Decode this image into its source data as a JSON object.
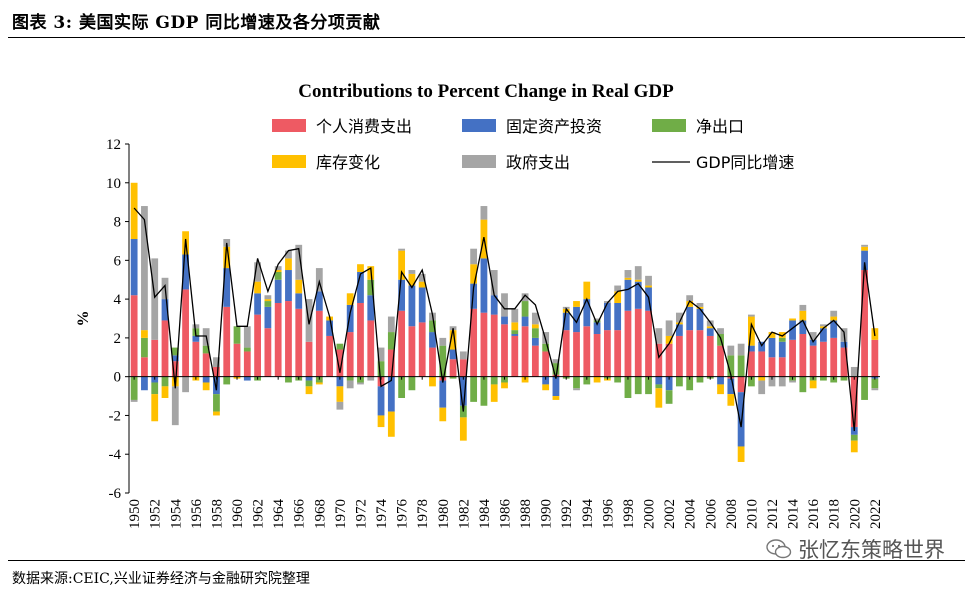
{
  "header": {
    "title": "图表 3:  美国实际 GDP 同比增速及各分项贡献"
  },
  "footer": {
    "source": "数据来源:CEIC,兴业证券经济与金融研究院整理"
  },
  "watermark": {
    "text": "张忆东策略世界",
    "icon": "wechat-icon"
  },
  "chart_data": {
    "type": "bar",
    "stacked": true,
    "title": "Contributions to Percent Change in Real GDP",
    "ylabel": "%",
    "xlabel": "",
    "ylim": [
      -6,
      12
    ],
    "yticks": [
      -6,
      -4,
      -2,
      0,
      2,
      4,
      6,
      8,
      10,
      12
    ],
    "grid": false,
    "legend_position": "top",
    "x_tick_labels": [
      "1950",
      "1952",
      "1954",
      "1956",
      "1958",
      "1960",
      "1962",
      "1964",
      "1966",
      "1968",
      "1970",
      "1972",
      "1974",
      "1976",
      "1978",
      "1980",
      "1982",
      "1984",
      "1986",
      "1988",
      "1990",
      "1992",
      "1994",
      "1996",
      "1998",
      "2000",
      "2002",
      "2004",
      "2006",
      "2008",
      "2010",
      "2012",
      "2014",
      "2016",
      "2018",
      "2020",
      "2022"
    ],
    "years": [
      1950,
      1951,
      1952,
      1953,
      1954,
      1955,
      1956,
      1957,
      1958,
      1959,
      1960,
      1961,
      1962,
      1963,
      1964,
      1965,
      1966,
      1967,
      1968,
      1969,
      1970,
      1971,
      1972,
      1973,
      1974,
      1975,
      1976,
      1977,
      1978,
      1979,
      1980,
      1981,
      1982,
      1983,
      1984,
      1985,
      1986,
      1987,
      1988,
      1989,
      1990,
      1991,
      1992,
      1993,
      1994,
      1995,
      1996,
      1997,
      1998,
      1999,
      2000,
      2001,
      2002,
      2003,
      2004,
      2005,
      2006,
      2007,
      2008,
      2009,
      2010,
      2011,
      2012,
      2013,
      2014,
      2015,
      2016,
      2017,
      2018,
      2019,
      2020,
      2021,
      2022
    ],
    "series": [
      {
        "name": "个人消费支出",
        "color": "#ee5a63",
        "values": [
          4.2,
          1.0,
          1.9,
          2.9,
          0.8,
          4.5,
          1.8,
          1.2,
          0.5,
          3.6,
          1.7,
          1.3,
          3.2,
          2.5,
          3.8,
          3.9,
          3.5,
          1.8,
          3.4,
          2.1,
          1.4,
          2.3,
          3.8,
          2.9,
          -0.5,
          1.4,
          3.4,
          2.6,
          2.8,
          1.5,
          -0.2,
          0.9,
          0.9,
          3.5,
          3.3,
          3.2,
          2.7,
          2.1,
          2.6,
          1.6,
          1.3,
          0.1,
          2.4,
          2.3,
          2.6,
          2.2,
          2.4,
          2.4,
          3.4,
          3.5,
          3.4,
          1.7,
          1.7,
          2.1,
          2.4,
          2.4,
          2.1,
          1.6,
          -0.1,
          -0.8,
          1.3,
          1.3,
          1.0,
          1.0,
          1.9,
          2.2,
          1.6,
          1.8,
          2.0,
          1.5,
          -2.6,
          5.5,
          1.9
        ]
      },
      {
        "name": "固定资产投资",
        "color": "#4471c4",
        "values": [
          2.9,
          -0.7,
          -0.3,
          1.1,
          0.3,
          1.8,
          0.3,
          -0.3,
          -0.9,
          2.0,
          0.0,
          -0.2,
          1.1,
          1.1,
          1.2,
          1.6,
          0.8,
          -0.2,
          1.0,
          0.8,
          -0.5,
          1.4,
          1.6,
          1.3,
          -1.5,
          -1.8,
          1.6,
          2.1,
          1.8,
          0.8,
          -1.4,
          0.5,
          -1.5,
          1.3,
          2.8,
          1.0,
          0.4,
          0.1,
          0.5,
          0.4,
          -0.4,
          -1.0,
          0.9,
          1.3,
          1.4,
          0.6,
          1.4,
          1.4,
          1.6,
          1.4,
          1.2,
          -0.4,
          -0.7,
          0.6,
          1.2,
          1.1,
          0.4,
          -0.4,
          -0.8,
          -2.8,
          0.3,
          0.5,
          1.0,
          0.8,
          1.0,
          0.7,
          0.3,
          0.7,
          0.9,
          0.3,
          -0.4,
          1.0,
          -0.1
        ]
      },
      {
        "name": "净出口",
        "color": "#70ad47",
        "values": [
          -1.2,
          1.0,
          -0.6,
          -0.5,
          0.4,
          0.0,
          0.4,
          0.4,
          -0.9,
          -0.4,
          0.9,
          0.2,
          -0.2,
          0.3,
          0.4,
          -0.3,
          -0.2,
          -0.3,
          -0.3,
          0.0,
          0.3,
          -0.2,
          -0.3,
          0.8,
          0.8,
          0.9,
          -1.1,
          -0.7,
          0.0,
          0.6,
          1.6,
          -0.1,
          -0.6,
          -1.3,
          -1.5,
          -0.4,
          -0.3,
          0.2,
          0.8,
          0.5,
          0.4,
          0.6,
          -0.1,
          -0.6,
          -0.4,
          0.1,
          -0.1,
          -0.3,
          -1.1,
          -0.9,
          -0.9,
          -0.2,
          -0.7,
          -0.5,
          -0.7,
          -0.3,
          -0.1,
          0.6,
          1.1,
          1.1,
          -0.5,
          0.0,
          0.0,
          0.2,
          -0.2,
          -0.8,
          -0.2,
          -0.2,
          -0.3,
          -0.2,
          -0.3,
          -1.2,
          -0.5
        ]
      },
      {
        "name": "库存变化",
        "color": "#ffc000",
        "values": [
          2.9,
          0.4,
          -1.4,
          -0.6,
          -0.5,
          1.2,
          -0.2,
          -0.4,
          -0.2,
          1.1,
          -0.1,
          0.0,
          0.6,
          0.1,
          0.1,
          0.6,
          0.7,
          -0.4,
          -0.1,
          0.2,
          -0.8,
          0.6,
          0.4,
          0.7,
          -0.6,
          -1.3,
          1.5,
          0.6,
          0.3,
          -0.5,
          -0.7,
          1.0,
          -1.2,
          1.0,
          2.0,
          -0.9,
          -0.3,
          0.4,
          -0.3,
          0.2,
          -0.3,
          -0.2,
          0.2,
          0.3,
          0.9,
          -0.3,
          -0.1,
          0.6,
          0.1,
          0.1,
          0.1,
          -1.0,
          0.4,
          0.1,
          0.3,
          0.1,
          0.1,
          -0.5,
          -0.6,
          -0.8,
          1.5,
          -0.2,
          0.3,
          0.3,
          0.1,
          0.5,
          -0.4,
          0.1,
          0.2,
          0.0,
          -0.6,
          0.2,
          0.6
        ]
      },
      {
        "name": "政府支出",
        "color": "#a5a5a5",
        "values": [
          -0.1,
          6.4,
          4.2,
          1.1,
          -2.0,
          -0.8,
          0.2,
          0.9,
          0.5,
          0.4,
          0.0,
          1.1,
          1.0,
          0.2,
          0.2,
          0.4,
          1.8,
          2.2,
          1.2,
          0.0,
          -0.4,
          -0.4,
          -0.1,
          -0.2,
          0.7,
          0.8,
          0.1,
          0.2,
          0.4,
          0.4,
          0.4,
          0.2,
          0.4,
          0.8,
          0.7,
          1.3,
          1.2,
          0.7,
          0.4,
          0.6,
          0.6,
          0.2,
          0.1,
          -0.1,
          0.0,
          0.1,
          0.1,
          0.3,
          0.4,
          0.7,
          0.5,
          0.8,
          0.8,
          0.5,
          0.3,
          0.2,
          0.3,
          0.3,
          0.5,
          0.6,
          0.1,
          -0.7,
          -0.5,
          -0.5,
          -0.1,
          0.3,
          0.4,
          0.1,
          0.3,
          0.7,
          0.5,
          0.1,
          -0.1
        ]
      },
      {
        "name": "GDP同比增速",
        "color": "#000000",
        "type": "line",
        "values": [
          8.7,
          8.1,
          4.1,
          4.7,
          -0.6,
          7.1,
          2.1,
          2.1,
          -0.7,
          6.9,
          2.6,
          2.6,
          6.1,
          4.4,
          5.8,
          6.5,
          6.6,
          2.7,
          4.9,
          3.1,
          0.2,
          3.3,
          5.3,
          5.6,
          -0.5,
          -0.2,
          5.4,
          4.6,
          5.5,
          3.2,
          -0.3,
          2.5,
          -1.8,
          4.6,
          7.2,
          4.2,
          3.5,
          3.5,
          4.2,
          3.7,
          1.9,
          -0.1,
          3.5,
          2.8,
          4.0,
          2.7,
          3.8,
          4.4,
          4.5,
          4.8,
          4.1,
          1.0,
          1.7,
          2.8,
          3.9,
          3.5,
          2.8,
          2.0,
          0.1,
          -2.6,
          2.7,
          1.6,
          2.3,
          2.1,
          2.5,
          2.9,
          1.8,
          2.5,
          2.9,
          2.3,
          -2.8,
          5.9,
          2.1
        ]
      }
    ]
  }
}
